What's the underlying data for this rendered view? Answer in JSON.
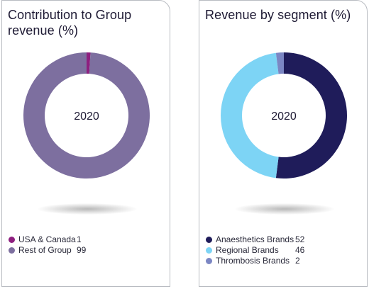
{
  "chart_data": [
    {
      "type": "pie",
      "title": "Contribution to Group revenue (%)",
      "center_label": "2020",
      "categories": [
        "USA & Canada",
        "Rest of Group"
      ],
      "values": [
        1,
        99
      ],
      "colors": [
        "#8e1f7f",
        "#7d6f9f"
      ],
      "legend_position": "bottom-left"
    },
    {
      "type": "pie",
      "title": "Revenue by segment (%)",
      "center_label": "2020",
      "categories": [
        "Anaesthetics Brands",
        "Regional Brands",
        "Thrombosis Brands"
      ],
      "values": [
        52,
        46,
        2
      ],
      "colors": [
        "#1f1c5a",
        "#7dd4f5",
        "#7b86c3"
      ],
      "legend_position": "bottom-left"
    }
  ]
}
